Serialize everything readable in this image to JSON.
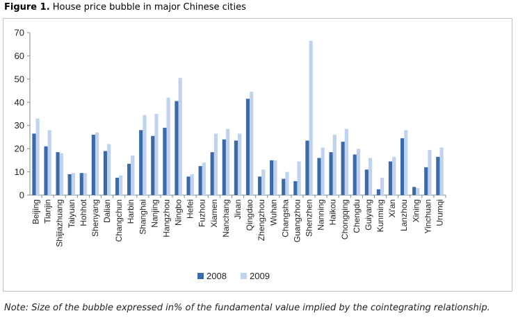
{
  "figure": {
    "label": "Figure 1.",
    "title": "House price bubble in major Chinese cities",
    "note": "Note: Size of the bubble expressed in% of the fundamental value implied by the cointegrating relationship."
  },
  "colors": {
    "series_2008": "#3a6aa8",
    "series_2009": "#bfd3ee",
    "axis": "#888888"
  },
  "chart_data": {
    "type": "bar",
    "title": "House price bubble in major Chinese cities",
    "xlabel": "",
    "ylabel": "",
    "ylim": [
      0,
      70
    ],
    "yticks": [
      "0",
      "10",
      "20",
      "30",
      "40",
      "50",
      "60",
      "70"
    ],
    "grid": false,
    "legend_position": "bottom-center",
    "categories": [
      "Beijing",
      "Tianjin",
      "Shijiazhuang",
      "Taiyuan",
      "Hohhot",
      "Shenyang",
      "Dalian",
      "Changchun",
      "Harbin",
      "Shanghai",
      "Nanjing",
      "Hangzhou",
      "Ningbo",
      "Hefei",
      "Fuzhou",
      "Xiamen",
      "Nanchang",
      "Jinan",
      "Qingdao",
      "Zhengzhou",
      "Wuhan",
      "Changsha",
      "Guangzhou",
      "Shenzhen",
      "Nanning",
      "Haikou",
      "Chongqing",
      "Chengdu",
      "Guiyang",
      "Kunming",
      "Xi'an",
      "Lanzhou",
      "Xining",
      "Yinchuan",
      "Urumqi"
    ],
    "series": [
      {
        "name": "2008",
        "values": [
          26.5,
          21,
          18.5,
          9,
          9.5,
          26,
          19,
          7.5,
          13.5,
          28,
          25.5,
          29,
          40.5,
          8,
          12.5,
          18.5,
          24,
          23.5,
          41.5,
          8,
          15,
          7,
          6,
          23.5,
          16,
          18.5,
          23,
          17.5,
          11,
          2.5,
          14.5,
          24.5,
          3.5,
          12,
          16.5
        ]
      },
      {
        "name": "2009",
        "values": [
          33,
          28,
          18,
          9.5,
          9.5,
          27,
          22,
          8.5,
          17,
          34.5,
          35,
          42,
          50.5,
          9,
          14,
          26.5,
          28.5,
          26.5,
          44.5,
          11,
          15,
          10,
          14.5,
          66.5,
          20.5,
          26,
          28.5,
          20,
          16,
          7.5,
          16.5,
          28,
          3,
          19.5,
          20.5
        ]
      }
    ]
  }
}
